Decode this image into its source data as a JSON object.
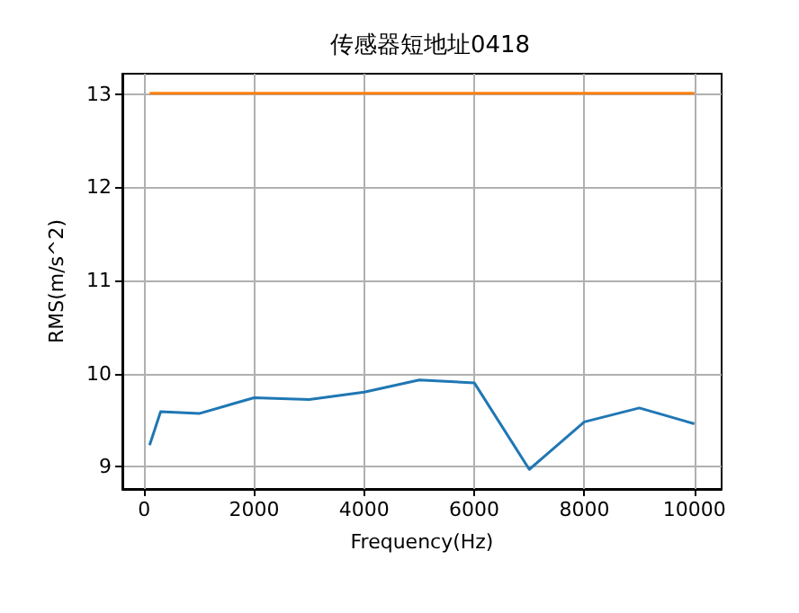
{
  "chart_data": {
    "type": "line",
    "title": "传感器短地址0418",
    "xlabel": "Frequency(Hz)",
    "ylabel": "RMS(m/s^2)",
    "x": [
      100,
      300,
      1000,
      2000,
      3000,
      4000,
      5000,
      6000,
      7000,
      8000,
      9000,
      10000
    ],
    "series": [
      {
        "color": "#1f77b4",
        "values": [
          9.23,
          9.59,
          9.57,
          9.74,
          9.72,
          9.8,
          9.93,
          9.9,
          8.97,
          9.48,
          9.63,
          9.46
        ]
      },
      {
        "color": "#ff7f0e",
        "values": [
          13.01,
          13.01,
          13.01,
          13.01,
          13.01,
          13.01,
          13.01,
          13.01,
          13.01,
          13.01,
          13.01,
          13.01
        ]
      }
    ],
    "xlim": [
      -395,
      10495
    ],
    "ylim": [
      8.76,
      13.22
    ],
    "xticks": [
      0,
      2000,
      4000,
      6000,
      8000,
      10000
    ],
    "yticks": [
      9,
      10,
      11,
      12,
      13
    ],
    "grid": true,
    "marker": "none",
    "line_style": "solid"
  }
}
